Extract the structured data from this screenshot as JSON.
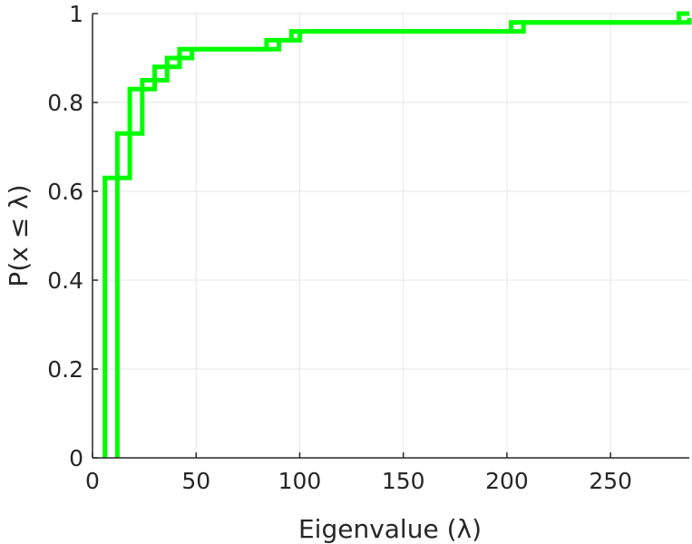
{
  "chart_data": {
    "type": "line",
    "style": "stairs",
    "xlabel": "Eigenvalue (λ)",
    "ylabel": "P(x ≤ λ)",
    "xlim": [
      0,
      288
    ],
    "ylim": [
      0,
      1
    ],
    "xticks": [
      "0",
      "50",
      "100",
      "150",
      "200",
      "250"
    ],
    "yticks": [
      "0",
      "0.2",
      "0.4",
      "0.6",
      "0.8",
      "1"
    ],
    "grid": true,
    "legend": "none",
    "series_color": "#00ff00",
    "series": [
      {
        "x": [
          6,
          12,
          18,
          24,
          30,
          36,
          42,
          84,
          96,
          202,
          283,
          288
        ],
        "y": [
          0.63,
          0.73,
          0.83,
          0.85,
          0.88,
          0.9,
          0.92,
          0.94,
          0.96,
          0.98,
          1.0,
          1.0
        ]
      },
      {
        "x": [
          12,
          18,
          24,
          30,
          36,
          42,
          48,
          90,
          100,
          208,
          288
        ],
        "y": [
          0.63,
          0.73,
          0.83,
          0.85,
          0.88,
          0.9,
          0.92,
          0.94,
          0.96,
          0.98,
          0.99
        ]
      }
    ]
  }
}
